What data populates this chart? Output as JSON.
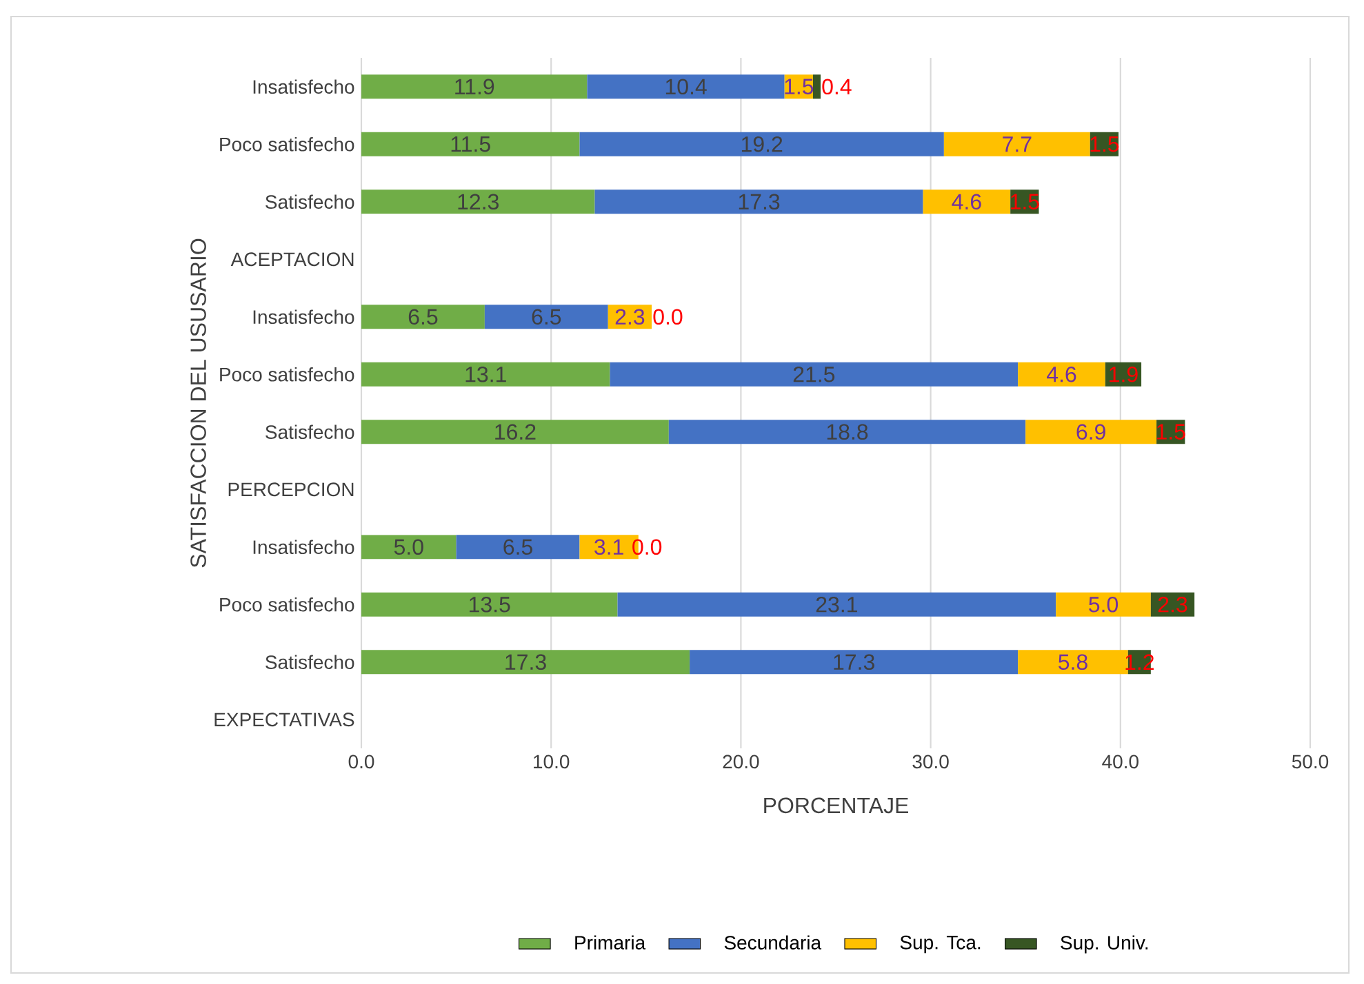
{
  "chart_data": {
    "type": "bar",
    "orientation": "horizontal",
    "stacked": true,
    "xlabel": "PORCENTAJE",
    "ylabel": "SATISFACCION DEL USUSARIO",
    "categories": [
      "Insatisfecho",
      "Poco satisfecho",
      "Satisfecho",
      "ACEPTACION",
      "Insatisfecho",
      "Poco satisfecho",
      "Satisfecho",
      "PERCEPCION",
      "Insatisfecho",
      "Poco satisfecho",
      "Satisfecho",
      "EXPECTATIVAS"
    ],
    "series": [
      {
        "name": "Primaria",
        "color": "#70ad47",
        "values": [
          11.9,
          11.5,
          12.3,
          null,
          6.5,
          13.1,
          16.2,
          null,
          5.0,
          13.5,
          17.3,
          null
        ],
        "value_labels": [
          "11.9",
          "11.5",
          "12.3",
          null,
          "6.5",
          "13.1",
          "16.2",
          null,
          "5.0",
          "13.5",
          "17.3",
          null
        ]
      },
      {
        "name": "Secundaria",
        "color": "#4472c4",
        "values": [
          10.4,
          19.2,
          17.3,
          null,
          6.5,
          21.5,
          18.8,
          null,
          6.5,
          23.1,
          17.3,
          null
        ],
        "value_labels": [
          "10.4",
          "19.2",
          "17.3",
          null,
          "6.5",
          "21.5",
          "18.8",
          null,
          "6.5",
          "23.1",
          "17.3",
          null
        ]
      },
      {
        "name": "Sup. Tca.",
        "color": "#ffc000",
        "values": [
          1.5,
          7.7,
          4.6,
          null,
          2.3,
          4.6,
          6.9,
          null,
          3.1,
          5.0,
          5.8,
          null
        ],
        "value_labels": [
          "1.5",
          "7.7",
          "4.6",
          null,
          "2.3",
          "4.6",
          "6.9",
          null,
          "3.1",
          "5.0",
          "5.8",
          null
        ]
      },
      {
        "name": "Sup. Univ.",
        "color": "#375623",
        "values": [
          0.4,
          1.5,
          1.5,
          null,
          0.0,
          1.9,
          1.5,
          null,
          0.0,
          2.3,
          1.2,
          null
        ],
        "value_labels": [
          "0.4",
          "1.5",
          "1.5",
          null,
          "0.0",
          "1.9",
          "1.5",
          null,
          "0.0",
          "2.3",
          "1.2",
          null
        ]
      }
    ],
    "xlim": [
      0,
      50
    ],
    "xticks": [
      {
        "value": 0,
        "label": "0.0"
      },
      {
        "value": 10,
        "label": "10.0"
      },
      {
        "value": 20,
        "label": "20.0"
      },
      {
        "value": 30,
        "label": "30.0"
      },
      {
        "value": 40,
        "label": "40.0"
      },
      {
        "value": 50,
        "label": "50.0"
      }
    ],
    "grid": "x",
    "legend": "bottom"
  }
}
